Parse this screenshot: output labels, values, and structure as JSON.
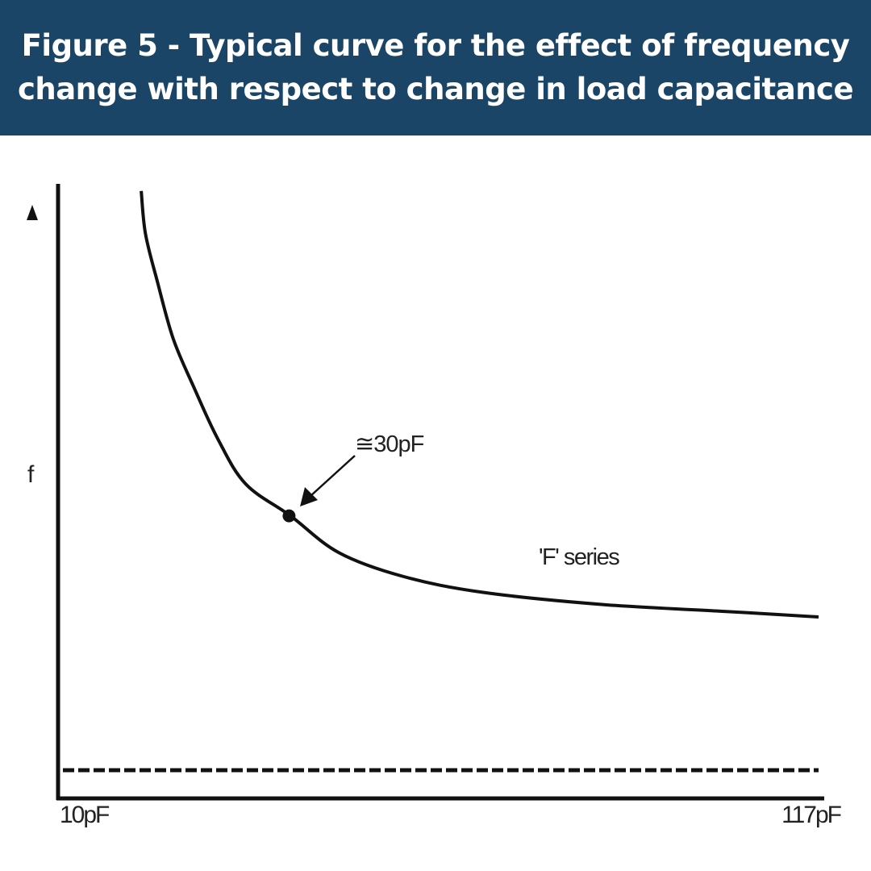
{
  "header": {
    "title": "Figure 5 - Typical curve for the effect of frequency change with respect to change in load capacitance"
  },
  "chart_data": {
    "type": "line",
    "title": "Figure 5 - Typical curve for the effect of frequency change with respect to change in load capacitance",
    "xlabel": "",
    "ylabel": "f",
    "x_tick_labels": [
      "10pF",
      "117pF"
    ],
    "xlim": [
      10,
      117
    ],
    "ylim": [
      0,
      100
    ],
    "grid": false,
    "series": [
      {
        "name": "'F' series",
        "x": [
          21.7,
          22.3,
          24.0,
          26.2,
          29.1,
          32.5,
          36.4,
          42.7,
          49.5,
          58.6,
          69.9,
          87.0,
          104.0,
          117.0
        ],
        "y": [
          99.1,
          92.1,
          84.2,
          75.0,
          67.1,
          58.6,
          51.3,
          46.1,
          40.1,
          36.2,
          33.6,
          31.6,
          30.5,
          29.6
        ]
      }
    ],
    "asymptote": {
      "style": "dashed",
      "y": 4.6
    },
    "annotation": {
      "text": "≅30pF",
      "point": {
        "x": 42.5,
        "y": 46.1
      }
    },
    "colors": {
      "banner": "#1b4566",
      "line": "#111111"
    }
  }
}
